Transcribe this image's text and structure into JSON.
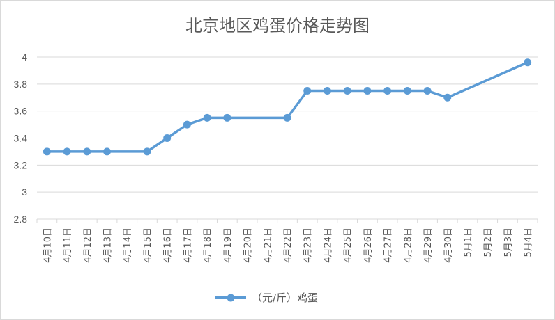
{
  "chart_data": {
    "type": "line",
    "title": "北京地区鸡蛋价格走势图",
    "xlabel": "",
    "ylabel": "",
    "ylim": [
      2.8,
      4
    ],
    "yticks": [
      2.8,
      3,
      3.2,
      3.4,
      3.6,
      3.8,
      4
    ],
    "categories": [
      "4月10日",
      "4月11日",
      "4月12日",
      "4月13日",
      "4月14日",
      "4月15日",
      "4月16日",
      "4月17日",
      "4月18日",
      "4月19日",
      "4月20日",
      "4月21日",
      "4月22日",
      "4月23日",
      "4月24日",
      "4月25日",
      "4月26日",
      "4月27日",
      "4月28日",
      "4月29日",
      "4月30日",
      "5月1日",
      "5月2日",
      "5月3日",
      "5月4日"
    ],
    "series": [
      {
        "name": "（元/斤）鸡蛋",
        "color": "#5b9bd5",
        "values": [
          3.3,
          3.3,
          3.3,
          3.3,
          null,
          3.3,
          3.4,
          3.5,
          3.55,
          3.55,
          null,
          null,
          3.55,
          3.75,
          3.75,
          3.75,
          3.75,
          3.75,
          3.75,
          3.75,
          3.7,
          null,
          null,
          null,
          3.96
        ]
      }
    ],
    "grid": true,
    "legend": "bottom"
  }
}
